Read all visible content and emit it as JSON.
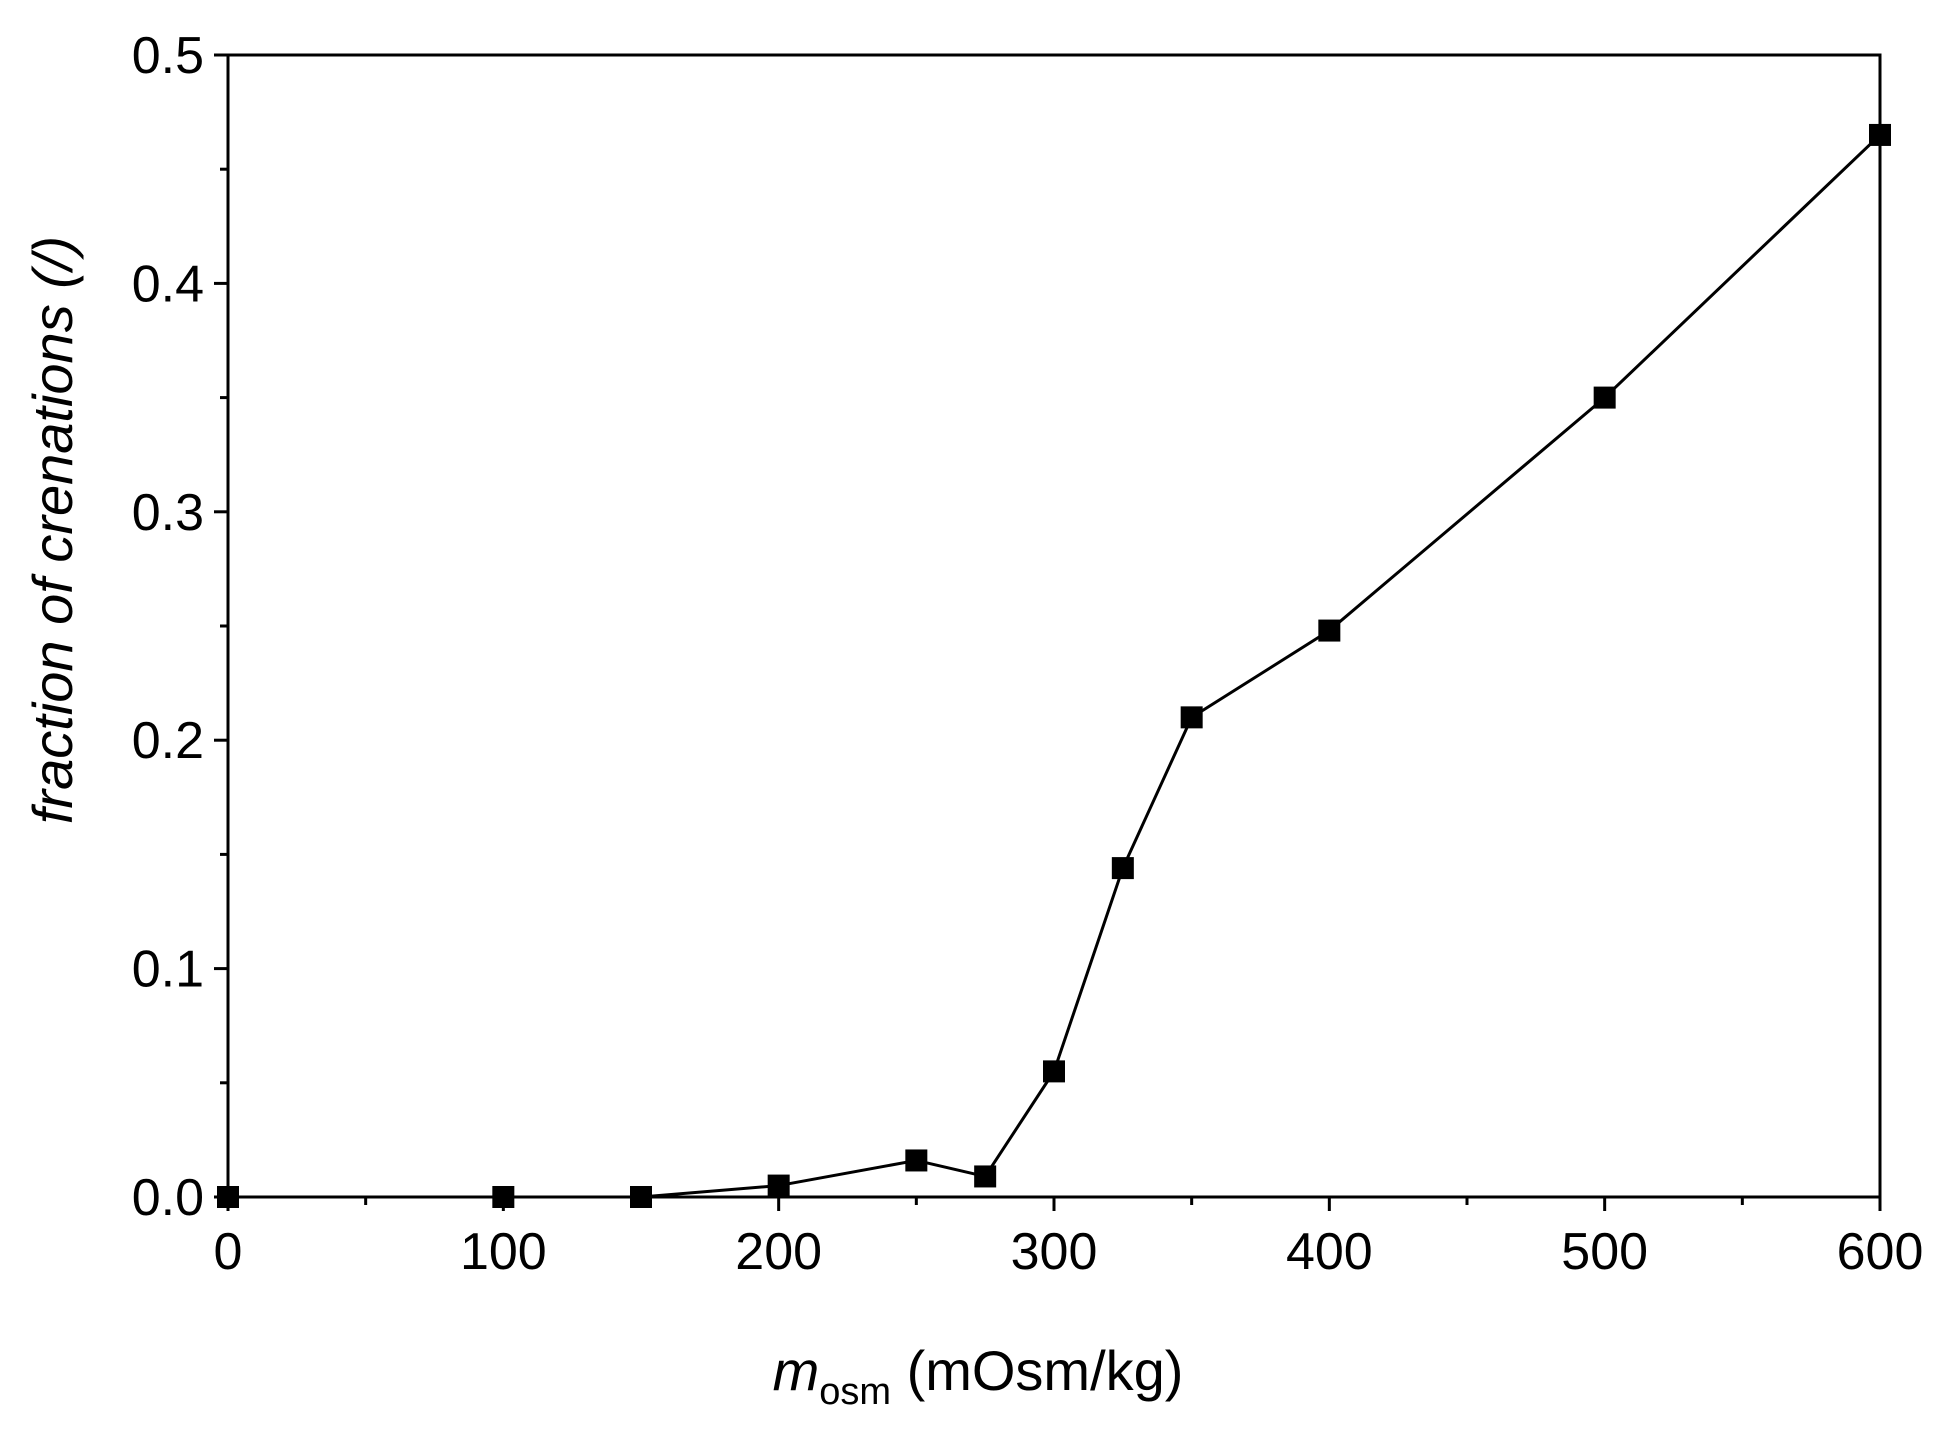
{
  "chart_data": {
    "type": "line",
    "title": "",
    "xlabel_main": "m",
    "xlabel_sub": "osm",
    "xlabel_units": " (mOsm/kg)",
    "ylabel": "fraction of crenations (/)",
    "xlim": [
      0,
      600
    ],
    "ylim": [
      0,
      0.5
    ],
    "x_ticks": [
      0,
      100,
      200,
      300,
      400,
      500,
      600
    ],
    "x_tick_labels": [
      "0",
      "100",
      "200",
      "300",
      "400",
      "500",
      "600"
    ],
    "x_minor_step": 50,
    "y_ticks": [
      0,
      0.1,
      0.2,
      0.3,
      0.4,
      0.5
    ],
    "y_tick_labels": [
      "0.0",
      "0.1",
      "0.2",
      "0.3",
      "0.4",
      "0.5"
    ],
    "y_minor_step": 0.05,
    "grid": false,
    "marker": "square",
    "series": [
      {
        "x": [
          0,
          100,
          150,
          200,
          250,
          275,
          300,
          325,
          350,
          400,
          500,
          600
        ],
        "y": [
          0.0,
          0.0,
          0.0,
          0.005,
          0.016,
          0.009,
          0.055,
          0.144,
          0.21,
          0.248,
          0.35,
          0.465
        ]
      }
    ],
    "colors": {
      "line": "#000000",
      "marker": "#000000",
      "axis": "#000000"
    }
  }
}
